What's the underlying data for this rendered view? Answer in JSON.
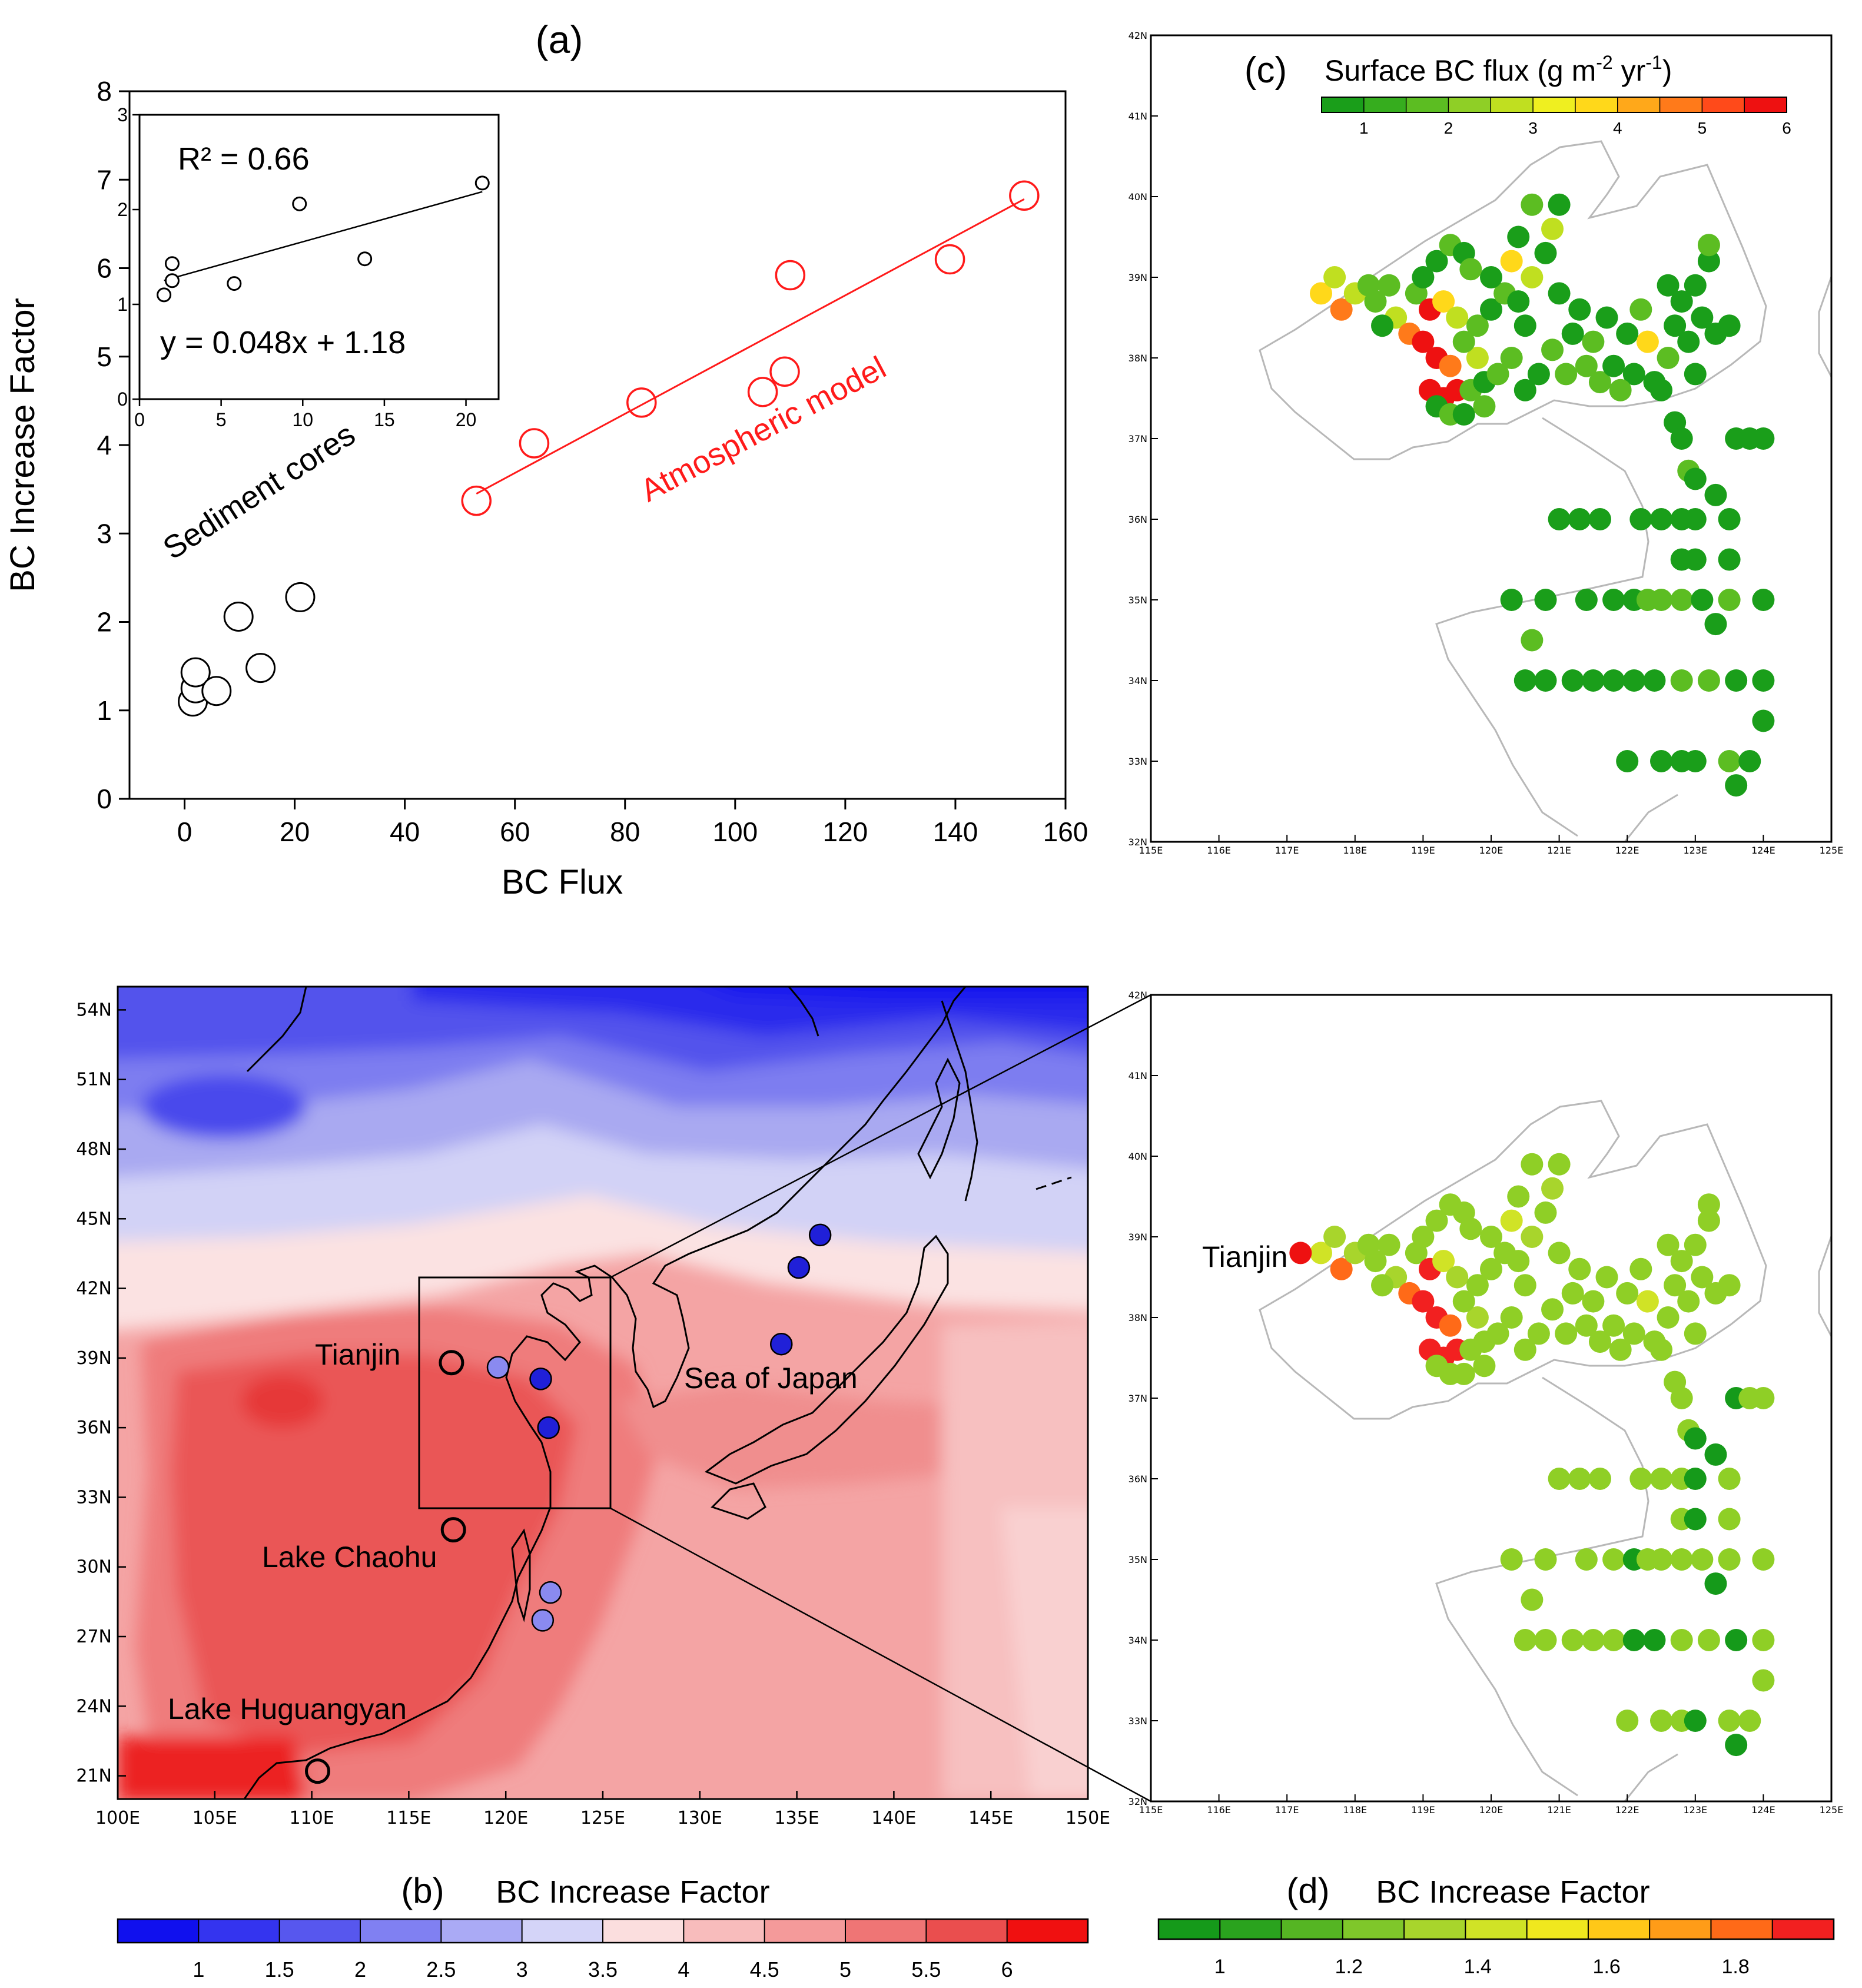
{
  "colors": {
    "bc_flux_scale": [
      "#1a9e1a",
      "#36ad1e",
      "#5cbd22",
      "#8fcf26",
      "#c0df20",
      "#efef20",
      "#ffd81a",
      "#ffa81a",
      "#ff7a1a",
      "#ff4a1a",
      "#ee1111"
    ],
    "bc_factor_scale": [
      "#1010ee",
      "#3434ef",
      "#5757ee",
      "#8080f2",
      "#aaaaf5",
      "#d4d4f8",
      "#fbdede",
      "#f8bcbc",
      "#f49a9a",
      "#ef7575",
      "#ea4e4e",
      "#f01010"
    ],
    "bc_factor_green_scale": [
      "#159a1a",
      "#2aa31e",
      "#55b523",
      "#7fc72a",
      "#a8d52c",
      "#d0e326",
      "#f0e81e",
      "#ffc818",
      "#ff9c18",
      "#ff6a18",
      "#f22020"
    ],
    "atmos_model": "#ff1a1a",
    "coast": "#000000",
    "border": "#b8b8b8",
    "marker_dark": "#2020d8",
    "marker_light": "#8a8af0",
    "marker_red": "#ee1111"
  },
  "chart_data": [
    {
      "id": "a",
      "type": "scatter",
      "panel_label": "(a)",
      "xlabel": "BC Flux",
      "ylabel": "BC Increase Factor",
      "xlim": [
        -10,
        160
      ],
      "ylim": [
        0,
        8
      ],
      "xticks": [
        0,
        20,
        40,
        60,
        80,
        100,
        120,
        140,
        160
      ],
      "yticks": [
        0,
        1,
        2,
        3,
        4,
        5,
        6,
        7,
        8
      ],
      "series": [
        {
          "name": "Sediment cores",
          "color": "#000000",
          "x": [
            1.5,
            2,
            2,
            5.8,
            9.8,
            13.8,
            21
          ],
          "y": [
            1.1,
            1.25,
            1.43,
            1.22,
            2.06,
            1.48,
            2.28
          ]
        },
        {
          "name": "Atmospheric model",
          "color": "#ff1a1a",
          "x": [
            53,
            63.5,
            83,
            105,
            109,
            110,
            139,
            152.5
          ],
          "y": [
            3.37,
            4.02,
            4.48,
            4.6,
            4.83,
            5.92,
            6.1,
            6.82
          ],
          "fit": {
            "x": [
              53,
              152.5
            ],
            "y": [
              3.45,
              6.78
            ]
          }
        }
      ],
      "annotations": [
        "Sediment cores",
        "Atmospheric model"
      ],
      "inset": {
        "xlim": [
          0,
          22
        ],
        "ylim": [
          0,
          3
        ],
        "xticks": [
          0,
          5,
          10,
          15,
          20
        ],
        "yticks": [
          0,
          1,
          2,
          3
        ],
        "x": [
          1.5,
          2,
          2,
          5.8,
          9.8,
          13.8,
          21
        ],
        "y": [
          1.1,
          1.25,
          1.43,
          1.22,
          2.06,
          1.48,
          2.28
        ],
        "fit": {
          "slope": 0.048,
          "intercept": 1.18
        },
        "r2_label": "R² = 0.66",
        "eq_label": "y = 0.048x + 1.18"
      }
    },
    {
      "id": "b",
      "type": "heatmap",
      "panel_label": "(b)",
      "colorbar_title": "BC Increase Factor",
      "colorbar_ticks": [
        "1",
        "1.5",
        "2",
        "2.5",
        "3",
        "3.5",
        "4",
        "4.5",
        "5",
        "5.5",
        "6"
      ],
      "lon_ticks": [
        "100E",
        "105E",
        "110E",
        "115E",
        "120E",
        "125E",
        "130E",
        "135E",
        "140E",
        "145E",
        "150E"
      ],
      "lat_ticks": [
        "21N",
        "24N",
        "27N",
        "30N",
        "33N",
        "36N",
        "39N",
        "42N",
        "45N",
        "48N",
        "51N",
        "54N"
      ],
      "lon_range": [
        100,
        150
      ],
      "lat_range": [
        20,
        55
      ],
      "zoom_box": {
        "lon": [
          117.5,
          125
        ],
        "lat": [
          32.5,
          42
        ]
      },
      "sites": [
        {
          "name": "Tianjin",
          "lon": 117.2,
          "lat": 38.8,
          "kind": "open"
        },
        {
          "name": "Lake Chaohu",
          "lon": 117.3,
          "lat": 31.6,
          "kind": "open"
        },
        {
          "name": "Lake Huguangyan",
          "lon": 110.3,
          "lat": 21.2,
          "kind": "open"
        },
        {
          "name": "",
          "lon": 119.6,
          "lat": 38.6,
          "kind": "light"
        },
        {
          "name": "",
          "lon": 121.8,
          "lat": 38.1,
          "kind": "dark"
        },
        {
          "name": "",
          "lon": 122.2,
          "lat": 36.0,
          "kind": "dark"
        },
        {
          "name": "",
          "lon": 122.3,
          "lat": 28.9,
          "kind": "light"
        },
        {
          "name": "",
          "lon": 121.9,
          "lat": 27.7,
          "kind": "light"
        },
        {
          "name": "",
          "lon": 135.1,
          "lat": 42.9,
          "kind": "dark"
        },
        {
          "name": "",
          "lon": 136.2,
          "lat": 44.3,
          "kind": "dark"
        },
        {
          "name": "",
          "lon": 134.2,
          "lat": 39.6,
          "kind": "dark"
        }
      ],
      "labels": [
        "Tianjin",
        "Lake Chaohu",
        "Lake Huguangyan",
        "Sea of Japan"
      ]
    },
    {
      "id": "c",
      "type": "scatter",
      "panel_label": "(c)",
      "title": "Surface BC flux (g m",
      "title_sup1": "-2",
      "title_mid": " yr",
      "title_sup2": "-1",
      "title_end": ")",
      "colorbar_ticks": [
        "1",
        "2",
        "3",
        "4",
        "5",
        "6"
      ],
      "lon_ticks": [
        "115E",
        "116E",
        "117E",
        "118E",
        "119E",
        "120E",
        "121E",
        "122E",
        "123E",
        "124E",
        "125E"
      ],
      "lat_ticks": [
        "32N",
        "33N",
        "34N",
        "35N",
        "36N",
        "37N",
        "38N",
        "39N",
        "40N",
        "41N",
        "42N"
      ],
      "lon_range": [
        115,
        125
      ],
      "lat_range": [
        32,
        42
      ]
    },
    {
      "id": "d",
      "type": "scatter",
      "panel_label": "(d)",
      "colorbar_title": "BC Increase Factor",
      "colorbar_ticks": [
        "1",
        "1.2",
        "1.4",
        "1.6",
        "1.8"
      ],
      "lon_ticks": [
        "115E",
        "116E",
        "117E",
        "118E",
        "119E",
        "120E",
        "121E",
        "122E",
        "123E",
        "124E",
        "125E"
      ],
      "lat_ticks": [
        "32N",
        "33N",
        "34N",
        "35N",
        "36N",
        "37N",
        "38N",
        "39N",
        "40N",
        "41N",
        "42N"
      ],
      "lon_range": [
        115,
        125
      ],
      "lat_range": [
        32,
        42
      ],
      "highlight": {
        "name": "Tianjin",
        "lon": 117.2,
        "lat": 38.8
      }
    }
  ],
  "station_points": [
    [
      117.5,
      38.8,
      4
    ],
    [
      117.7,
      39.0,
      3
    ],
    [
      117.8,
      38.6,
      5
    ],
    [
      118.0,
      38.8,
      3
    ],
    [
      118.2,
      38.9,
      2
    ],
    [
      118.3,
      38.7,
      2
    ],
    [
      118.5,
      38.9,
      2
    ],
    [
      118.6,
      38.5,
      3
    ],
    [
      118.8,
      38.3,
      5
    ],
    [
      118.9,
      38.8,
      2
    ],
    [
      119.0,
      39.0,
      1
    ],
    [
      119.2,
      39.2,
      1
    ],
    [
      119.4,
      39.4,
      2
    ],
    [
      119.6,
      39.3,
      1
    ],
    [
      119.1,
      38.6,
      6
    ],
    [
      119.3,
      38.7,
      4
    ],
    [
      119.5,
      38.5,
      3
    ],
    [
      119.0,
      38.2,
      6
    ],
    [
      119.2,
      38.0,
      6
    ],
    [
      119.4,
      37.9,
      5
    ],
    [
      119.1,
      37.6,
      6
    ],
    [
      119.3,
      37.5,
      6
    ],
    [
      119.5,
      37.6,
      6
    ],
    [
      119.2,
      37.4,
      1
    ],
    [
      119.4,
      37.3,
      2
    ],
    [
      119.6,
      37.3,
      1
    ],
    [
      119.7,
      37.6,
      2
    ],
    [
      119.9,
      37.7,
      1
    ],
    [
      120.1,
      37.8,
      2
    ],
    [
      119.8,
      38.0,
      3
    ],
    [
      119.6,
      38.2,
      2
    ],
    [
      119.8,
      38.4,
      2
    ],
    [
      120.0,
      38.6,
      1
    ],
    [
      120.2,
      38.8,
      2
    ],
    [
      120.0,
      39.0,
      1
    ],
    [
      120.3,
      39.2,
      4
    ],
    [
      120.6,
      39.0,
      3
    ],
    [
      120.8,
      39.3,
      1
    ],
    [
      120.9,
      39.6,
      3
    ],
    [
      121.0,
      39.9,
      1
    ],
    [
      120.6,
      39.9,
      2
    ],
    [
      120.5,
      38.4,
      1
    ],
    [
      120.3,
      38.0,
      2
    ],
    [
      120.7,
      37.8,
      1
    ],
    [
      120.9,
      38.1,
      2
    ],
    [
      121.1,
      37.8,
      2
    ],
    [
      121.2,
      38.3,
      1
    ],
    [
      121.3,
      38.6,
      1
    ],
    [
      121.5,
      38.2,
      2
    ],
    [
      121.7,
      38.5,
      1
    ],
    [
      121.4,
      37.9,
      2
    ],
    [
      121.6,
      37.7,
      2
    ],
    [
      121.8,
      37.9,
      1
    ],
    [
      122.0,
      38.3,
      1
    ],
    [
      122.2,
      38.6,
      2
    ],
    [
      122.3,
      38.2,
      4
    ],
    [
      122.1,
      37.8,
      1
    ],
    [
      122.4,
      37.7,
      1
    ],
    [
      122.6,
      38.0,
      2
    ],
    [
      122.7,
      38.4,
      1
    ],
    [
      122.8,
      38.7,
      1
    ],
    [
      122.9,
      38.2,
      1
    ],
    [
      123.0,
      37.8,
      1
    ],
    [
      123.1,
      38.5,
      1
    ],
    [
      123.3,
      38.3,
      1
    ],
    [
      123.5,
      38.4,
      1
    ],
    [
      123.2,
      39.2,
      1
    ],
    [
      123.2,
      39.4,
      2
    ],
    [
      123.0,
      38.9,
      1
    ],
    [
      122.6,
      38.9,
      1
    ],
    [
      122.7,
      37.2,
      1
    ],
    [
      122.8,
      37.0,
      1
    ],
    [
      122.9,
      36.6,
      2
    ],
    [
      123.0,
      36.5,
      1
    ],
    [
      123.3,
      36.3,
      1
    ],
    [
      123.6,
      37.0,
      1
    ],
    [
      123.8,
      37.0,
      1
    ],
    [
      124.0,
      37.0,
      1
    ],
    [
      121.0,
      36.0,
      1
    ],
    [
      121.3,
      36.0,
      1
    ],
    [
      121.6,
      36.0,
      1
    ],
    [
      122.2,
      36.0,
      1
    ],
    [
      122.5,
      36.0,
      1
    ],
    [
      122.8,
      36.0,
      1
    ],
    [
      123.0,
      36.0,
      1
    ],
    [
      123.5,
      36.0,
      1
    ],
    [
      122.8,
      35.5,
      1
    ],
    [
      123.0,
      35.5,
      1
    ],
    [
      123.5,
      35.5,
      1
    ],
    [
      120.3,
      35.0,
      1
    ],
    [
      120.8,
      35.0,
      1
    ],
    [
      121.4,
      35.0,
      1
    ],
    [
      121.8,
      35.0,
      1
    ],
    [
      122.1,
      35.0,
      1
    ],
    [
      122.3,
      35.0,
      2
    ],
    [
      122.5,
      35.0,
      2
    ],
    [
      122.8,
      35.0,
      2
    ],
    [
      123.1,
      35.0,
      1
    ],
    [
      123.5,
      35.0,
      2
    ],
    [
      124.0,
      35.0,
      1
    ],
    [
      123.3,
      34.7,
      1
    ],
    [
      120.6,
      34.5,
      2
    ],
    [
      120.5,
      34.0,
      1
    ],
    [
      120.8,
      34.0,
      1
    ],
    [
      121.2,
      34.0,
      1
    ],
    [
      121.5,
      34.0,
      1
    ],
    [
      121.8,
      34.0,
      1
    ],
    [
      122.1,
      34.0,
      1
    ],
    [
      122.4,
      34.0,
      1
    ],
    [
      122.8,
      34.0,
      2
    ],
    [
      123.2,
      34.0,
      2
    ],
    [
      123.6,
      34.0,
      1
    ],
    [
      124.0,
      34.0,
      1
    ],
    [
      124.0,
      33.5,
      1
    ],
    [
      122.0,
      33.0,
      1
    ],
    [
      122.5,
      33.0,
      1
    ],
    [
      122.8,
      33.0,
      1
    ],
    [
      123.0,
      33.0,
      1
    ],
    [
      123.5,
      33.0,
      2
    ],
    [
      123.8,
      33.0,
      1
    ],
    [
      123.6,
      32.7,
      1
    ],
    [
      119.7,
      39.1,
      2
    ],
    [
      120.4,
      39.5,
      1
    ],
    [
      121.9,
      37.6,
      2
    ],
    [
      122.5,
      37.6,
      1
    ],
    [
      120.5,
      37.6,
      1
    ],
    [
      119.9,
      37.4,
      2
    ],
    [
      120.4,
      38.7,
      1
    ],
    [
      121.0,
      38.8,
      1
    ],
    [
      118.4,
      38.4,
      1
    ]
  ]
}
